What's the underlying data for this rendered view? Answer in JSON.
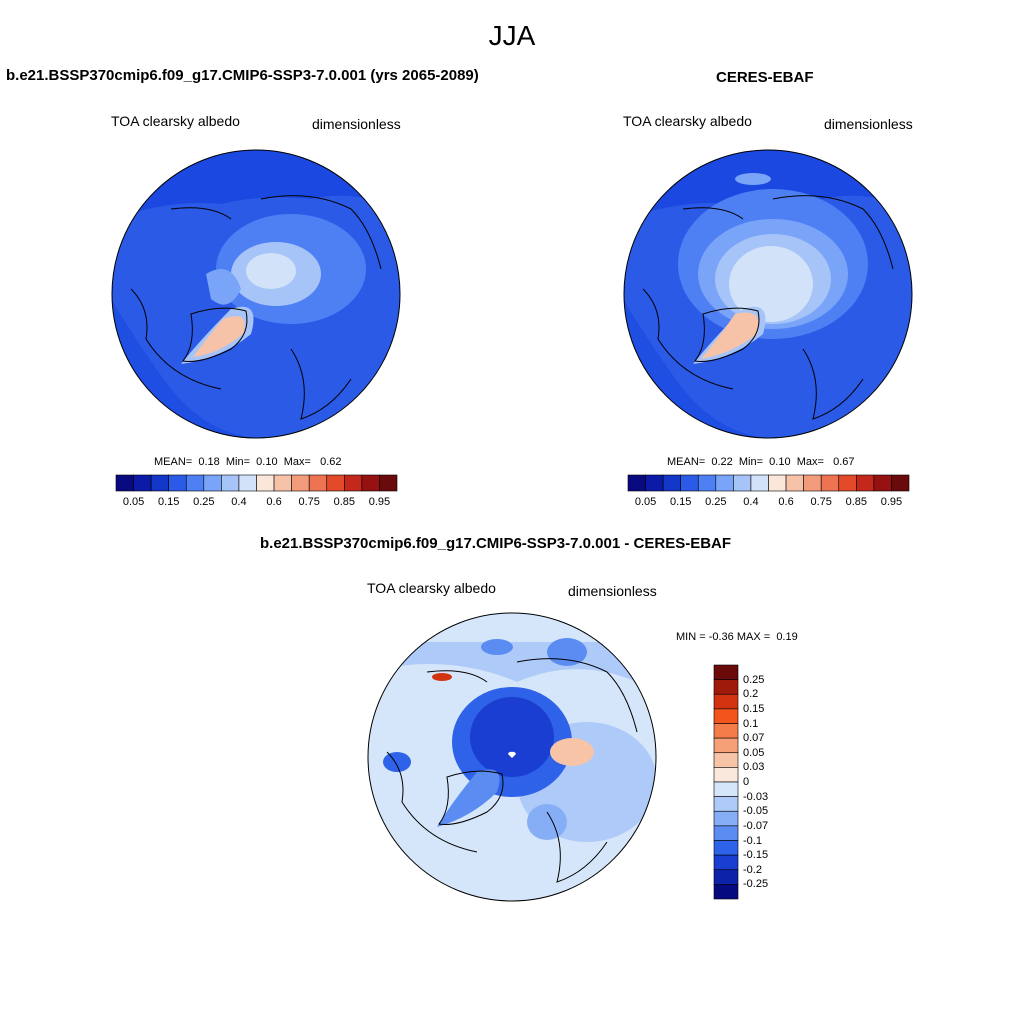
{
  "figure": {
    "title": "JJA"
  },
  "panels": {
    "model": {
      "title": "b.e21.BSSP370cmip6.f09_g17.CMIP6-SSP3-7.0.001 (yrs 2065-2089)",
      "variable": "TOA clearsky albedo",
      "units": "dimensionless",
      "stats": {
        "mean_label": "MEAN=",
        "mean": "0.18",
        "min_label": "Min=",
        "min": "0.10",
        "max_label": "Max=",
        "max": "0.62"
      }
    },
    "obs": {
      "title": "CERES-EBAF",
      "variable": "TOA clearsky albedo",
      "units": "dimensionless",
      "stats": {
        "mean_label": "MEAN=",
        "mean": "0.22",
        "min_label": "Min=",
        "min": "0.10",
        "max_label": "Max=",
        "max": "0.67"
      }
    },
    "diff": {
      "title": "b.e21.BSSP370cmip6.f09_g17.CMIP6-SSP3-7.0.001 - CERES-EBAF",
      "variable": "TOA clearsky albedo",
      "units": "dimensionless",
      "stats": {
        "min_label": "MIN =",
        "min": "-0.36",
        "max_label": "MAX =",
        "max": "0.19"
      }
    }
  },
  "colorbars": {
    "albedo": {
      "colors": [
        "#0a0a80",
        "#0c1aa8",
        "#1236c8",
        "#2a5ae6",
        "#4e80f4",
        "#7aa4f8",
        "#a6c4f8",
        "#d2e2f8",
        "#fbe6da",
        "#f6c2a8",
        "#f29c7c",
        "#ee7350",
        "#e24a2a",
        "#c4281a",
        "#961212",
        "#6a0a0a"
      ],
      "labels": [
        "0.05",
        "0.15",
        "0.25",
        "0.4",
        "0.6",
        "0.75",
        "0.85",
        "0.95"
      ]
    },
    "diff": {
      "colors": [
        "#6a0a0a",
        "#a01a0c",
        "#d23412",
        "#f2541c",
        "#f47c4a",
        "#f6a078",
        "#f8c4a8",
        "#fbe8dc",
        "#d6e6fa",
        "#aecaf8",
        "#86aef6",
        "#5a8cf2",
        "#2e62e8",
        "#1a3ed2",
        "#0c22a8",
        "#060a80"
      ],
      "labels": [
        "0.25",
        "0.2",
        "0.15",
        "0.1",
        "0.07",
        "0.05",
        "0.03",
        "0",
        "-0.03",
        "-0.05",
        "-0.07",
        "-0.1",
        "-0.15",
        "-0.2",
        "-0.25"
      ]
    }
  }
}
